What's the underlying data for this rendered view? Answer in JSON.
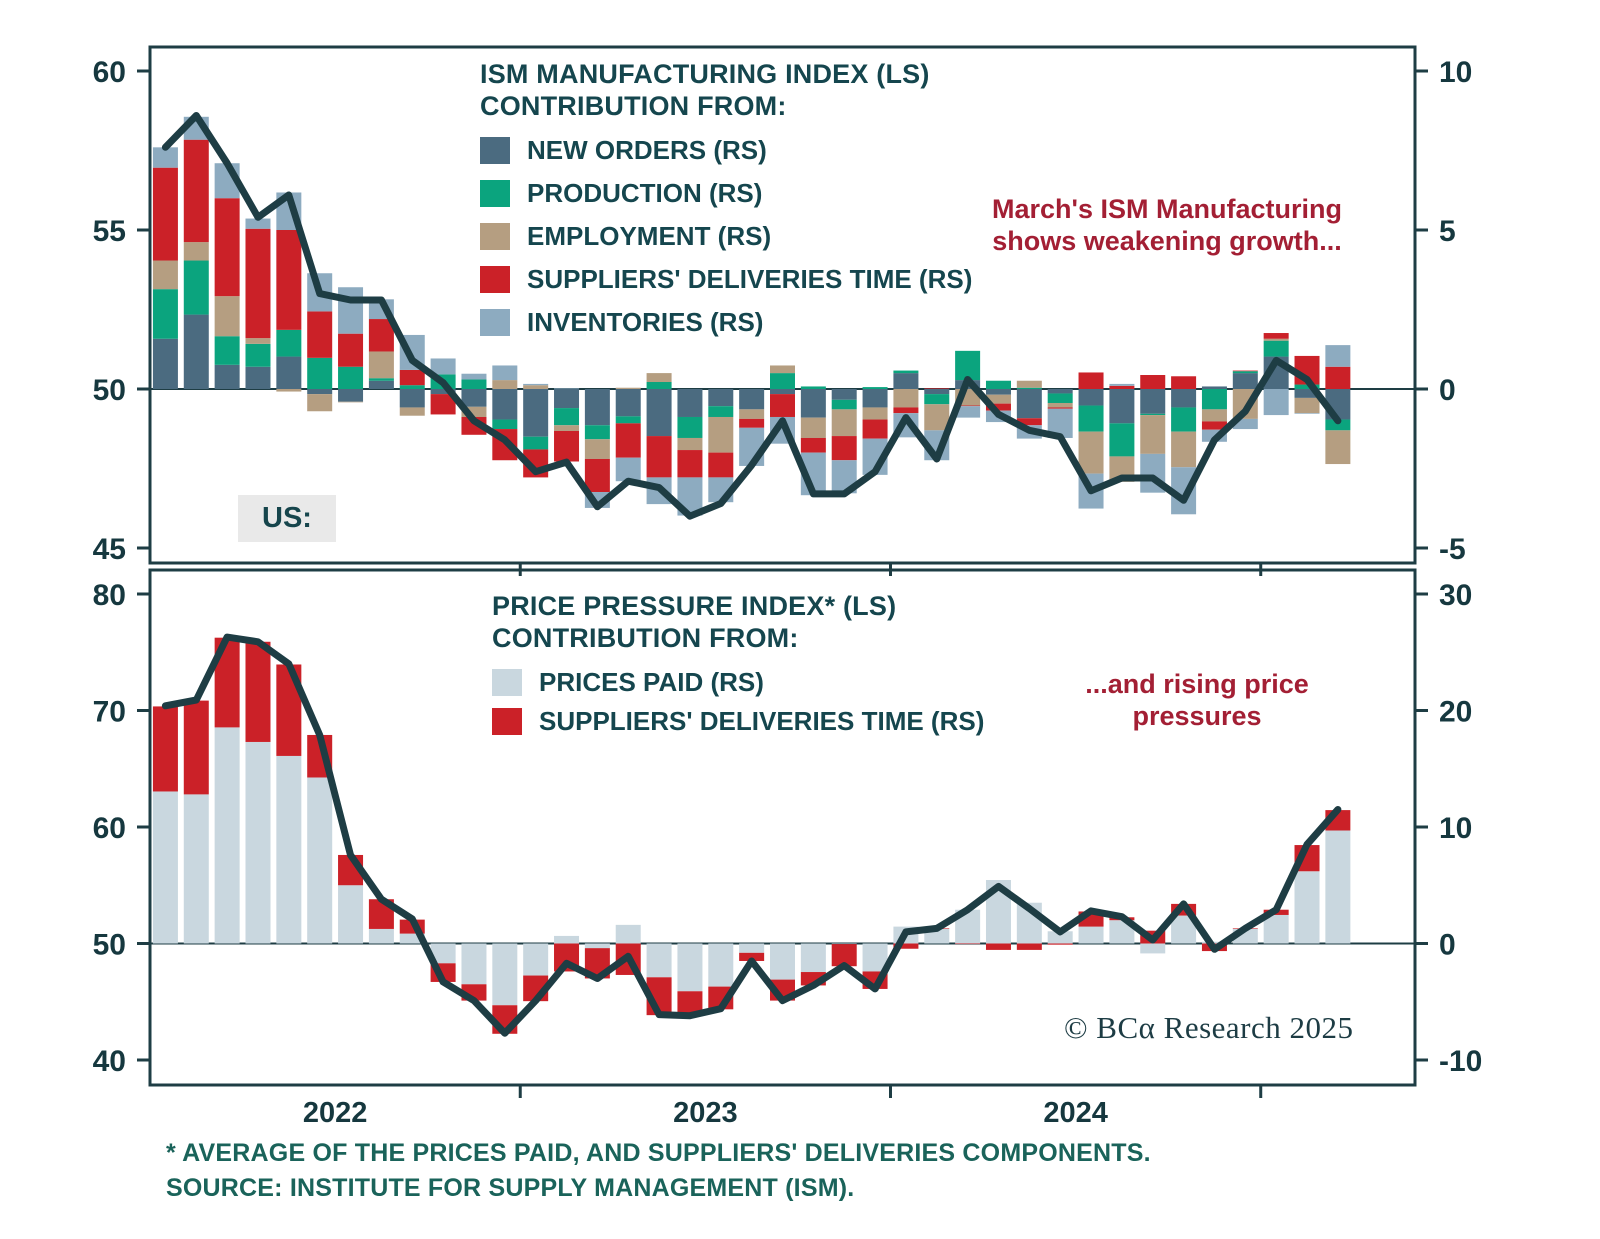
{
  "region_label": "US:",
  "branding": {
    "copyright": "© BCα Research 2025"
  },
  "footnote": {
    "line1": "* AVERAGE OF THE PRICES PAID, AND SUPPLIERS' DELIVERIES COMPONENTS.",
    "line2": "SOURCE: INSTITUTE FOR SUPPLY MANAGEMENT (ISM)."
  },
  "x_axis": {
    "year_labels": [
      "2022",
      "2023",
      "2024"
    ],
    "months": [
      "2022-01",
      "2022-02",
      "2022-03",
      "2022-04",
      "2022-05",
      "2022-06",
      "2022-07",
      "2022-08",
      "2022-09",
      "2022-10",
      "2022-11",
      "2022-12",
      "2023-01",
      "2023-02",
      "2023-03",
      "2023-04",
      "2023-05",
      "2023-06",
      "2023-07",
      "2023-08",
      "2023-09",
      "2023-10",
      "2023-11",
      "2023-12",
      "2024-01",
      "2024-02",
      "2024-03",
      "2024-04",
      "2024-05",
      "2024-06",
      "2024-07",
      "2024-08",
      "2024-09",
      "2024-10",
      "2024-11",
      "2024-12",
      "2025-01",
      "2025-02",
      "2025-03"
    ]
  },
  "chart_data": [
    {
      "type": "bar",
      "subtype": "stacked-bar-with-line",
      "panel": "top",
      "title": "ISM MANUFACTURING INDEX (LS)",
      "legend_heading": "CONTRIBUTION FROM:",
      "annotation_lines": [
        "March's ISM Manufacturing",
        "shows weakening growth..."
      ],
      "annotation_color": "#a31f34",
      "left_axis": {
        "ticks": [
          60,
          55,
          50,
          45
        ],
        "range": [
          45,
          60
        ]
      },
      "right_axis": {
        "ticks": [
          10,
          5,
          0,
          -5
        ],
        "range": [
          -5,
          10
        ]
      },
      "line": {
        "name": "ISM MANUFACTURING INDEX (LS)",
        "color": "#1e3d44",
        "values": [
          57.6,
          58.6,
          57.1,
          55.4,
          56.1,
          53.0,
          52.8,
          52.8,
          50.9,
          50.2,
          49.0,
          48.4,
          47.4,
          47.7,
          46.3,
          47.1,
          46.9,
          46.0,
          46.4,
          47.6,
          49.0,
          46.7,
          46.7,
          47.4,
          49.1,
          47.8,
          50.3,
          49.2,
          48.7,
          48.5,
          46.8,
          47.2,
          47.2,
          46.5,
          48.4,
          49.3,
          50.9,
          50.3,
          49.0
        ]
      },
      "series": [
        {
          "name": "new-orders",
          "label": "NEW ORDERS (RS)",
          "color": "#4b6b80",
          "values": [
            1.58,
            2.34,
            0.76,
            0.7,
            1.02,
            -0.16,
            -0.4,
            0.26,
            -0.58,
            -0.16,
            -0.56,
            -0.96,
            -1.5,
            -0.6,
            -1.14,
            -0.86,
            -1.48,
            -0.88,
            -0.54,
            -0.64,
            -0.16,
            -0.9,
            -0.34,
            -0.58,
            0.5,
            -0.16,
            0.28,
            -0.18,
            -0.92,
            -0.14,
            -0.52,
            -1.08,
            -0.78,
            -0.58,
            0.08,
            0.5,
            1.02,
            -0.28,
            -0.96
          ]
        },
        {
          "name": "production",
          "label": "PRODUCTION (RS)",
          "color": "#0ba47e",
          "values": [
            1.56,
            1.7,
            0.9,
            0.72,
            0.84,
            0.98,
            0.7,
            0.08,
            0.12,
            0.46,
            0.3,
            -0.3,
            -0.4,
            -0.54,
            -0.44,
            -0.22,
            0.22,
            -0.66,
            -0.34,
            0.0,
            0.5,
            0.08,
            -0.3,
            0.06,
            0.08,
            -0.32,
            0.92,
            0.26,
            0.04,
            -0.3,
            -0.82,
            -1.04,
            -0.04,
            -0.76,
            -0.64,
            0.06,
            0.5,
            0.14,
            -0.34
          ]
        },
        {
          "name": "employment",
          "label": "EMPLOYMENT (RS)",
          "color": "#b59e81",
          "values": [
            0.9,
            0.58,
            1.26,
            0.18,
            -0.08,
            -0.54,
            -0.02,
            0.84,
            -0.26,
            0.0,
            -0.32,
            0.28,
            0.12,
            -0.18,
            -0.62,
            0.04,
            0.28,
            -0.38,
            -1.12,
            -0.3,
            0.24,
            -0.64,
            -0.84,
            -0.38,
            -0.58,
            -0.82,
            -0.52,
            -0.28,
            0.22,
            -0.14,
            -1.32,
            -0.8,
            -1.22,
            -1.12,
            -0.38,
            -0.94,
            0.06,
            -0.48,
            -1.06
          ]
        },
        {
          "name": "suppliers-deliveries-time",
          "label": "SUPPLIERS' DELIVERIES TIME (RS)",
          "color": "#cb2128",
          "values": [
            2.92,
            3.22,
            3.08,
            3.44,
            3.14,
            1.46,
            1.04,
            1.02,
            0.48,
            -0.64,
            -0.56,
            -0.98,
            -0.88,
            -0.96,
            -1.04,
            -1.08,
            -1.3,
            -0.86,
            -0.78,
            -0.28,
            -0.72,
            -0.46,
            -0.76,
            -0.6,
            -0.18,
            0.02,
            -0.02,
            -0.22,
            -0.22,
            -0.04,
            0.52,
            0.1,
            0.44,
            0.4,
            -0.26,
            0.02,
            0.18,
            0.9,
            0.7
          ]
        },
        {
          "name": "inventories",
          "label": "INVENTORIES (RS)",
          "color": "#8dabc0",
          "values": [
            0.64,
            0.72,
            1.1,
            0.32,
            1.18,
            1.2,
            1.46,
            0.62,
            1.1,
            0.5,
            0.18,
            0.46,
            0.04,
            0.02,
            -0.5,
            -0.74,
            -0.84,
            -1.2,
            -0.78,
            -1.2,
            -0.84,
            -1.34,
            -1.04,
            -1.14,
            -0.76,
            -0.94,
            -0.36,
            -0.36,
            -0.42,
            -0.92,
            -1.1,
            0.06,
            -1.22,
            -1.48,
            -0.38,
            -0.32,
            -0.82,
            -0.02,
            0.68
          ]
        }
      ]
    },
    {
      "type": "bar",
      "subtype": "stacked-bar-with-line",
      "panel": "bottom",
      "title": "PRICE PRESSURE INDEX* (LS)",
      "legend_heading": "CONTRIBUTION FROM:",
      "annotation_lines": [
        "...and rising price",
        "pressures"
      ],
      "annotation_color": "#a31f34",
      "left_axis": {
        "ticks": [
          80,
          70,
          60,
          50,
          40
        ],
        "range": [
          40,
          80
        ]
      },
      "right_axis": {
        "ticks": [
          30,
          20,
          10,
          0,
          -10
        ],
        "range": [
          -10,
          30
        ]
      },
      "line": {
        "name": "PRICE PRESSURE INDEX (LS)",
        "color": "#1e3d44",
        "values": [
          70.4,
          70.9,
          76.3,
          75.9,
          74.0,
          67.9,
          57.6,
          53.8,
          52.1,
          46.7,
          45.1,
          42.3,
          45.1,
          48.3,
          47.0,
          48.9,
          43.9,
          43.8,
          44.4,
          48.5,
          45.1,
          46.4,
          48.1,
          46.1,
          51.0,
          51.3,
          52.9,
          54.9,
          53.0,
          51.0,
          52.8,
          52.3,
          50.3,
          53.4,
          49.5,
          51.3,
          52.9,
          58.5,
          61.5
        ]
      },
      "series": [
        {
          "name": "prices-paid",
          "label": "PRICES PAID (RS)",
          "color": "#c9d7df",
          "values": [
            13.05,
            12.8,
            18.55,
            17.3,
            16.1,
            14.25,
            5.0,
            1.25,
            0.85,
            -1.7,
            -3.5,
            -5.3,
            -2.75,
            0.65,
            -0.4,
            1.6,
            -2.9,
            -4.1,
            -3.7,
            -0.8,
            -3.1,
            -2.45,
            -0.05,
            -2.4,
            1.45,
            1.25,
            2.9,
            5.45,
            3.5,
            1.05,
            1.45,
            2.0,
            -0.85,
            2.4,
            0.15,
            1.25,
            2.45,
            6.2,
            9.7
          ]
        },
        {
          "name": "suppliers-deliveries-time",
          "label": "SUPPLIERS' DELIVERIES TIME (RS)",
          "color": "#cb2128",
          "values": [
            7.3,
            8.05,
            7.7,
            8.6,
            7.85,
            3.65,
            2.6,
            2.55,
            1.2,
            -1.6,
            -1.4,
            -2.45,
            -2.2,
            -2.4,
            -2.6,
            -2.7,
            -3.25,
            -2.15,
            -1.95,
            -0.7,
            -1.8,
            -1.15,
            -1.9,
            -1.5,
            -0.45,
            0.05,
            -0.05,
            -0.55,
            -0.55,
            -0.1,
            1.3,
            0.25,
            1.1,
            1.0,
            -0.65,
            0.05,
            0.45,
            2.25,
            1.75
          ]
        }
      ]
    }
  ]
}
